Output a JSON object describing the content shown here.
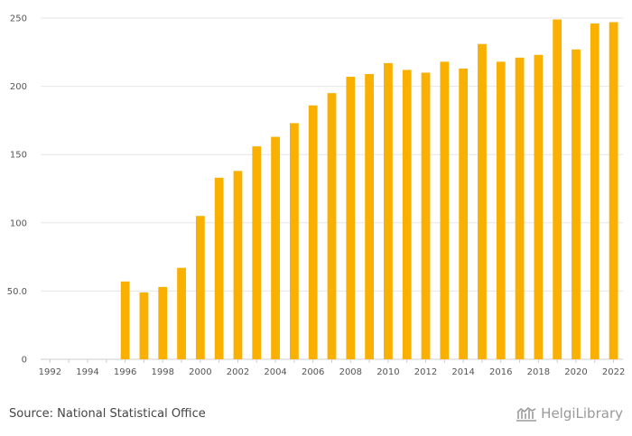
{
  "source_text": "Source: National Statistical Office",
  "logo_text": "HelgiLibrary",
  "colors": {
    "bar": "#f9b000",
    "grid": "#e6e6e6",
    "axis": "#cccccc"
  },
  "chart_data": {
    "type": "bar",
    "title": "",
    "xlabel": "",
    "ylabel": "",
    "ylim": [
      0,
      250
    ],
    "yticks": [
      0,
      50,
      100,
      150,
      200,
      250
    ],
    "ytick_labels": [
      "0",
      "50.0",
      "100",
      "150",
      "200",
      "250"
    ],
    "grid": true,
    "categories": [
      "1992",
      "1993",
      "1994",
      "1995",
      "1996",
      "1997",
      "1998",
      "1999",
      "2000",
      "2001",
      "2002",
      "2003",
      "2004",
      "2005",
      "2006",
      "2007",
      "2008",
      "2009",
      "2010",
      "2011",
      "2012",
      "2013",
      "2014",
      "2015",
      "2016",
      "2017",
      "2018",
      "2019",
      "2020",
      "2021",
      "2022"
    ],
    "xtick_labels": [
      "1992",
      "1994",
      "1996",
      "1998",
      "2000",
      "2002",
      "2004",
      "2006",
      "2008",
      "2010",
      "2012",
      "2014",
      "2016",
      "2018",
      "2020",
      "2022"
    ],
    "values": [
      null,
      null,
      null,
      null,
      57,
      49,
      53,
      67,
      105,
      133,
      138,
      156,
      163,
      173,
      186,
      195,
      207,
      209,
      217,
      212,
      210,
      218,
      213,
      231,
      218,
      221,
      223,
      249,
      227,
      246,
      247
    ]
  }
}
